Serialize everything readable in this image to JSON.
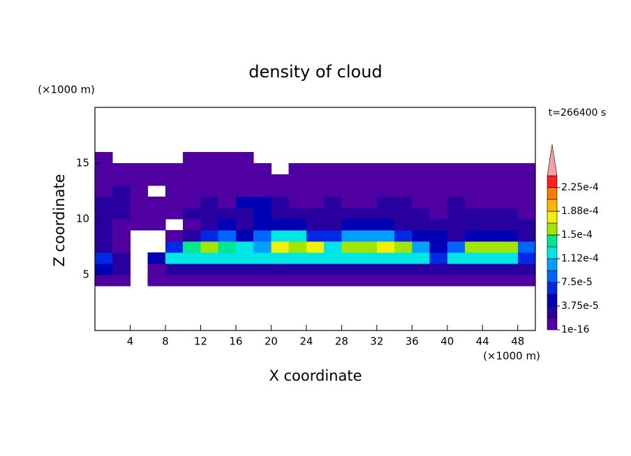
{
  "chart_data": {
    "type": "contour",
    "title": "density of cloud",
    "y_unit_label": "(×1000 m)",
    "x_unit_label": "(×1000 m)",
    "xlabel": "X coordinate",
    "ylabel": "Z coordinate",
    "time_label": "t=266400 s",
    "xlim": [
      0,
      50
    ],
    "ylim": [
      0,
      20
    ],
    "xticks": [
      4,
      8,
      12,
      16,
      20,
      24,
      28,
      32,
      36,
      40,
      44,
      48
    ],
    "yticks": [
      5,
      10,
      15
    ],
    "x_edges": [
      0,
      2,
      4,
      6,
      8,
      10,
      12,
      14,
      16,
      18,
      20,
      22,
      24,
      26,
      28,
      30,
      32,
      34,
      36,
      38,
      40,
      42,
      44,
      46,
      48,
      50
    ],
    "z_edges": [
      4,
      5,
      6,
      7,
      8,
      9,
      10,
      11,
      12,
      13,
      14,
      15,
      16
    ],
    "z": [
      [
        1e-06,
        1e-06,
        null,
        1e-06,
        1e-06,
        1e-06,
        1e-06,
        1e-06,
        1e-06,
        1e-06,
        1e-06,
        1e-06,
        1e-06,
        1e-06,
        1e-06,
        1e-06,
        1e-06,
        1e-06,
        1e-06,
        1e-06,
        1e-06,
        1e-06,
        1e-06,
        1e-06,
        1e-06
      ],
      [
        4e-05,
        3e-05,
        null,
        1e-06,
        3e-05,
        3e-05,
        3e-05,
        3e-05,
        3e-05,
        3e-05,
        3e-05,
        3e-05,
        3e-05,
        3e-05,
        3e-05,
        3e-05,
        3e-05,
        3e-05,
        3e-05,
        3e-05,
        3e-05,
        3e-05,
        3e-05,
        3e-05,
        3e-05
      ],
      [
        6e-05,
        3e-05,
        null,
        4e-05,
        0.00012,
        0.00012,
        0.00012,
        0.00012,
        0.00012,
        0.00012,
        0.00012,
        0.00012,
        0.00012,
        0.00012,
        0.00012,
        0.00012,
        0.00012,
        0.00012,
        0.00012,
        6e-05,
        0.00012,
        0.00012,
        0.00012,
        0.00012,
        6e-05
      ],
      [
        3e-05,
        1e-06,
        null,
        null,
        6e-05,
        0.000145,
        0.00016,
        0.000145,
        0.00013,
        0.0001,
        0.00017,
        0.00016,
        0.00017,
        0.00012,
        0.00016,
        0.00016,
        0.00017,
        0.00016,
        0.00011,
        5e-05,
        9e-05,
        0.00015,
        0.00016,
        0.00015,
        8e-05
      ],
      [
        2e-05,
        1e-06,
        null,
        null,
        1e-06,
        3e-05,
        6e-05,
        8e-05,
        5e-05,
        9e-05,
        0.00012,
        0.00012,
        6e-05,
        6e-05,
        0.00011,
        0.00011,
        0.00011,
        7e-05,
        4e-05,
        4e-05,
        3e-05,
        5e-05,
        5e-05,
        5e-05,
        3e-05
      ],
      [
        3e-05,
        1e-06,
        1e-06,
        1e-06,
        null,
        1e-06,
        3e-05,
        4e-05,
        3e-05,
        5e-05,
        4e-05,
        4e-05,
        3e-05,
        2e-05,
        5e-05,
        5e-05,
        5e-05,
        3e-05,
        2e-05,
        2e-05,
        2e-05,
        2e-05,
        2e-05,
        2e-05,
        2e-05
      ],
      [
        2e-05,
        2e-05,
        1e-06,
        1e-06,
        1e-06,
        2e-05,
        2e-05,
        2e-05,
        3e-05,
        4e-05,
        3e-05,
        2e-05,
        2e-05,
        2e-05,
        2e-05,
        3e-05,
        2e-05,
        2e-05,
        2e-05,
        1e-06,
        2e-05,
        2e-05,
        2e-05,
        2e-05,
        1e-06
      ],
      [
        2e-05,
        2e-05,
        1e-06,
        1e-06,
        1e-06,
        1e-06,
        2e-05,
        1e-06,
        4e-05,
        4e-05,
        2e-05,
        1e-06,
        1e-06,
        2e-05,
        1e-06,
        1e-06,
        2e-05,
        2e-05,
        1e-06,
        1e-06,
        2e-05,
        1e-06,
        1e-06,
        1e-06,
        1e-06
      ],
      [
        1e-06,
        2e-05,
        1e-06,
        null,
        1e-06,
        1e-06,
        1e-06,
        1e-06,
        1e-06,
        1e-06,
        1e-06,
        1e-06,
        1e-06,
        1e-06,
        1e-06,
        1e-06,
        1e-06,
        1e-06,
        1e-06,
        1e-06,
        1e-06,
        1e-06,
        1e-06,
        1e-06,
        1e-06
      ],
      [
        1e-06,
        1e-06,
        1e-06,
        1e-06,
        1e-06,
        1e-06,
        1e-06,
        1e-06,
        1e-06,
        1e-06,
        1e-06,
        1e-06,
        1e-06,
        1e-06,
        1e-06,
        1e-06,
        1e-06,
        1e-06,
        1e-06,
        1e-06,
        1e-06,
        1e-06,
        1e-06,
        1e-06,
        1e-06
      ],
      [
        1e-06,
        1e-06,
        1e-06,
        1e-06,
        1e-06,
        1e-06,
        1e-06,
        1e-06,
        1e-06,
        1e-06,
        null,
        1e-06,
        1e-06,
        1e-06,
        1e-06,
        1e-06,
        1e-06,
        1e-06,
        1e-06,
        1e-06,
        1e-06,
        1e-06,
        1e-06,
        1e-06,
        1e-06
      ],
      [
        1e-06,
        null,
        null,
        null,
        null,
        1e-06,
        1e-06,
        1e-06,
        1e-06,
        null,
        null,
        null,
        null,
        null,
        null,
        null,
        null,
        null,
        null,
        null,
        null,
        null,
        null,
        null,
        null
      ]
    ],
    "levels": [
      1e-16,
      1.875e-05,
      3.75e-05,
      5.625e-05,
      7.5e-05,
      9.375e-05,
      0.0001125,
      0.00013125,
      0.00015,
      0.00016875,
      0.0001875,
      0.00020625,
      0.000225
    ],
    "colors": [
      "#5000a0",
      "#2800a0",
      "#0000b4",
      "#0028e6",
      "#0064ff",
      "#00a0ff",
      "#00e6e6",
      "#00e68c",
      "#a0e600",
      "#f0f000",
      "#ffb400",
      "#ff7800",
      "#ff2020"
    ],
    "over_color": "#f5a0a0",
    "cbticks": [
      {
        "value": 1e-16,
        "label": "1e-16"
      },
      {
        "value": 3.75e-05,
        "label": "3.75e-5"
      },
      {
        "value": 7.5e-05,
        "label": "7.5e-5"
      },
      {
        "value": 0.0001125,
        "label": "1.12e-4"
      },
      {
        "value": 0.00015,
        "label": "1.5e-4"
      },
      {
        "value": 0.0001875,
        "label": "1.88e-4"
      },
      {
        "value": 0.000225,
        "label": "2.25e-4"
      }
    ]
  }
}
